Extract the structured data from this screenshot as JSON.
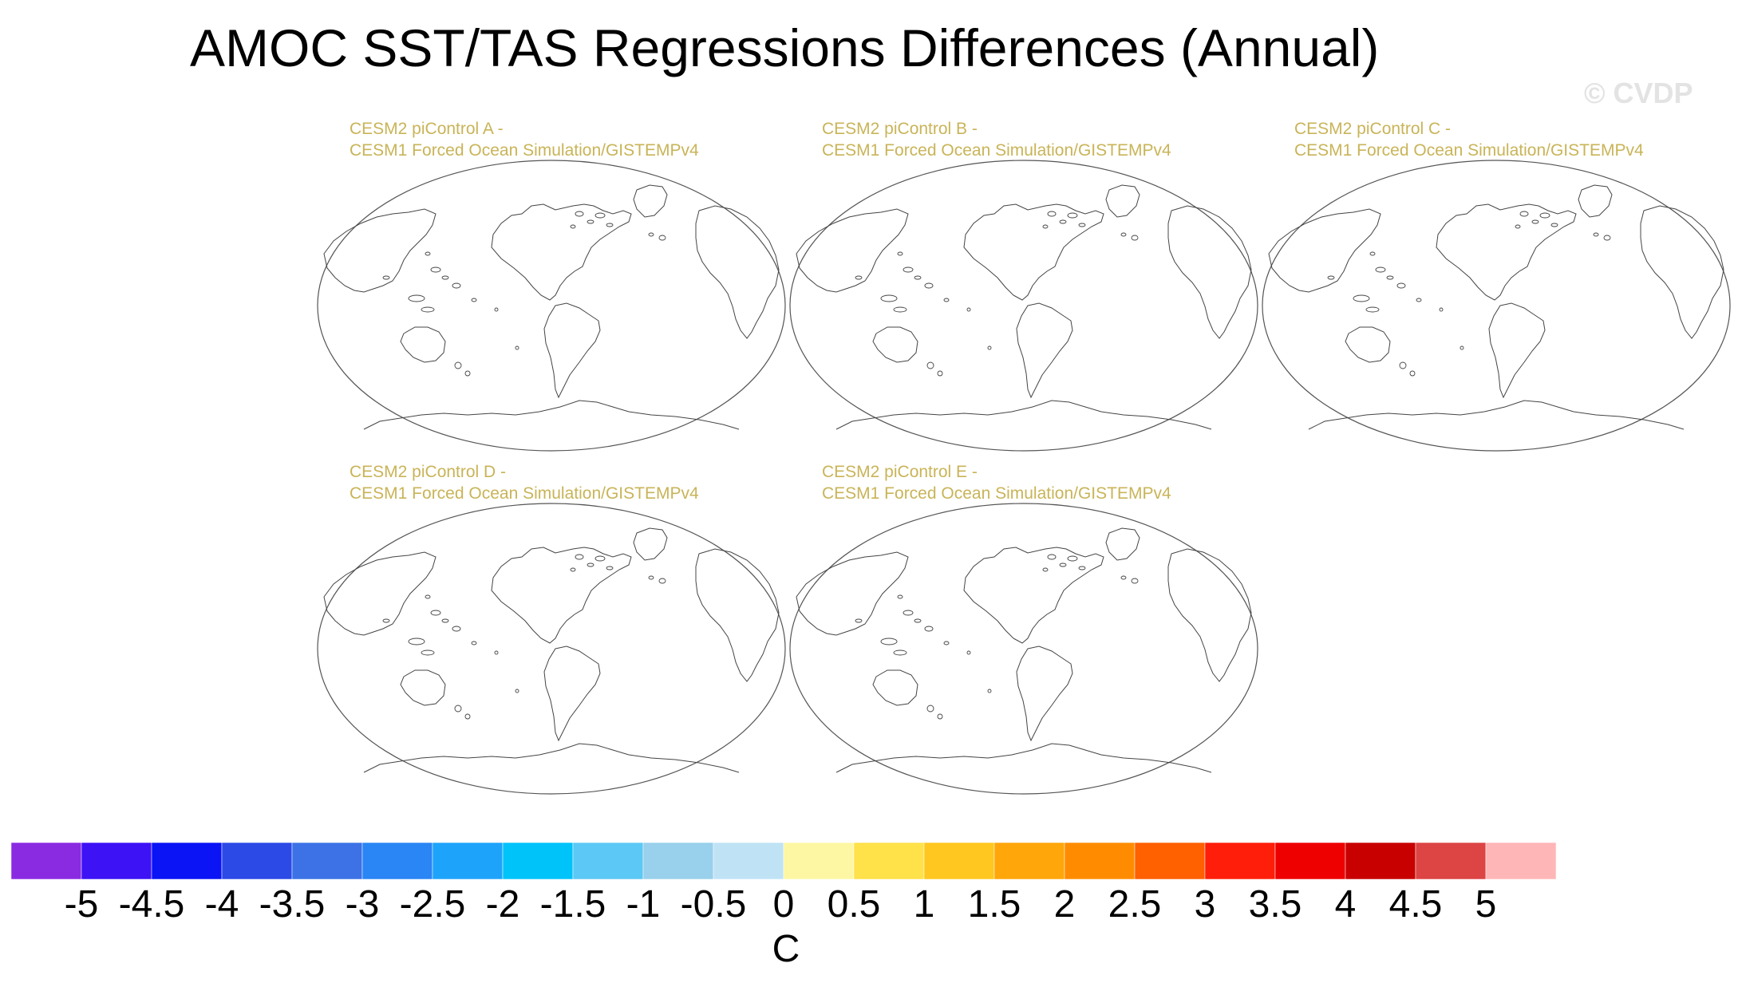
{
  "title": "AMOC SST/TAS Regressions Differences (Annual)",
  "watermark": "© CVDP",
  "panels": [
    {
      "line1": "CESM2 piControl A -",
      "line2": "CESM1 Forced Ocean Simulation/GISTEMPv4"
    },
    {
      "line1": "CESM2 piControl B -",
      "line2": "CESM1 Forced Ocean Simulation/GISTEMPv4"
    },
    {
      "line1": "CESM2 piControl C -",
      "line2": "CESM1 Forced Ocean Simulation/GISTEMPv4"
    },
    {
      "line1": "CESM2 piControl D -",
      "line2": "CESM1 Forced Ocean Simulation/GISTEMPv4"
    },
    {
      "line1": "CESM2 piControl E -",
      "line2": "CESM1 Forced Ocean Simulation/GISTEMPv4"
    }
  ],
  "colorbar": {
    "units": "C",
    "tick_labels": [
      "-5",
      "-4.5",
      "-4",
      "-3.5",
      "-3",
      "-2.5",
      "-2",
      "-1.5",
      "-1",
      "-0.5",
      "0",
      "0.5",
      "1",
      "1.5",
      "2",
      "2.5",
      "3",
      "3.5",
      "4",
      "4.5",
      "5"
    ],
    "colors": [
      "#8a2be2",
      "#3d12f5",
      "#0a14f5",
      "#2b4ae6",
      "#3c72e6",
      "#2a85f5",
      "#1ea3fa",
      "#00c3fa",
      "#5cc8f5",
      "#99d0ec",
      "#bfe3f5",
      "#fdf7a3",
      "#ffe14a",
      "#ffc71f",
      "#ffa60a",
      "#ff8c00",
      "#ff6000",
      "#ff1e0a",
      "#ee0000",
      "#c80000",
      "#dd4444",
      "#ffb6b6"
    ]
  }
}
